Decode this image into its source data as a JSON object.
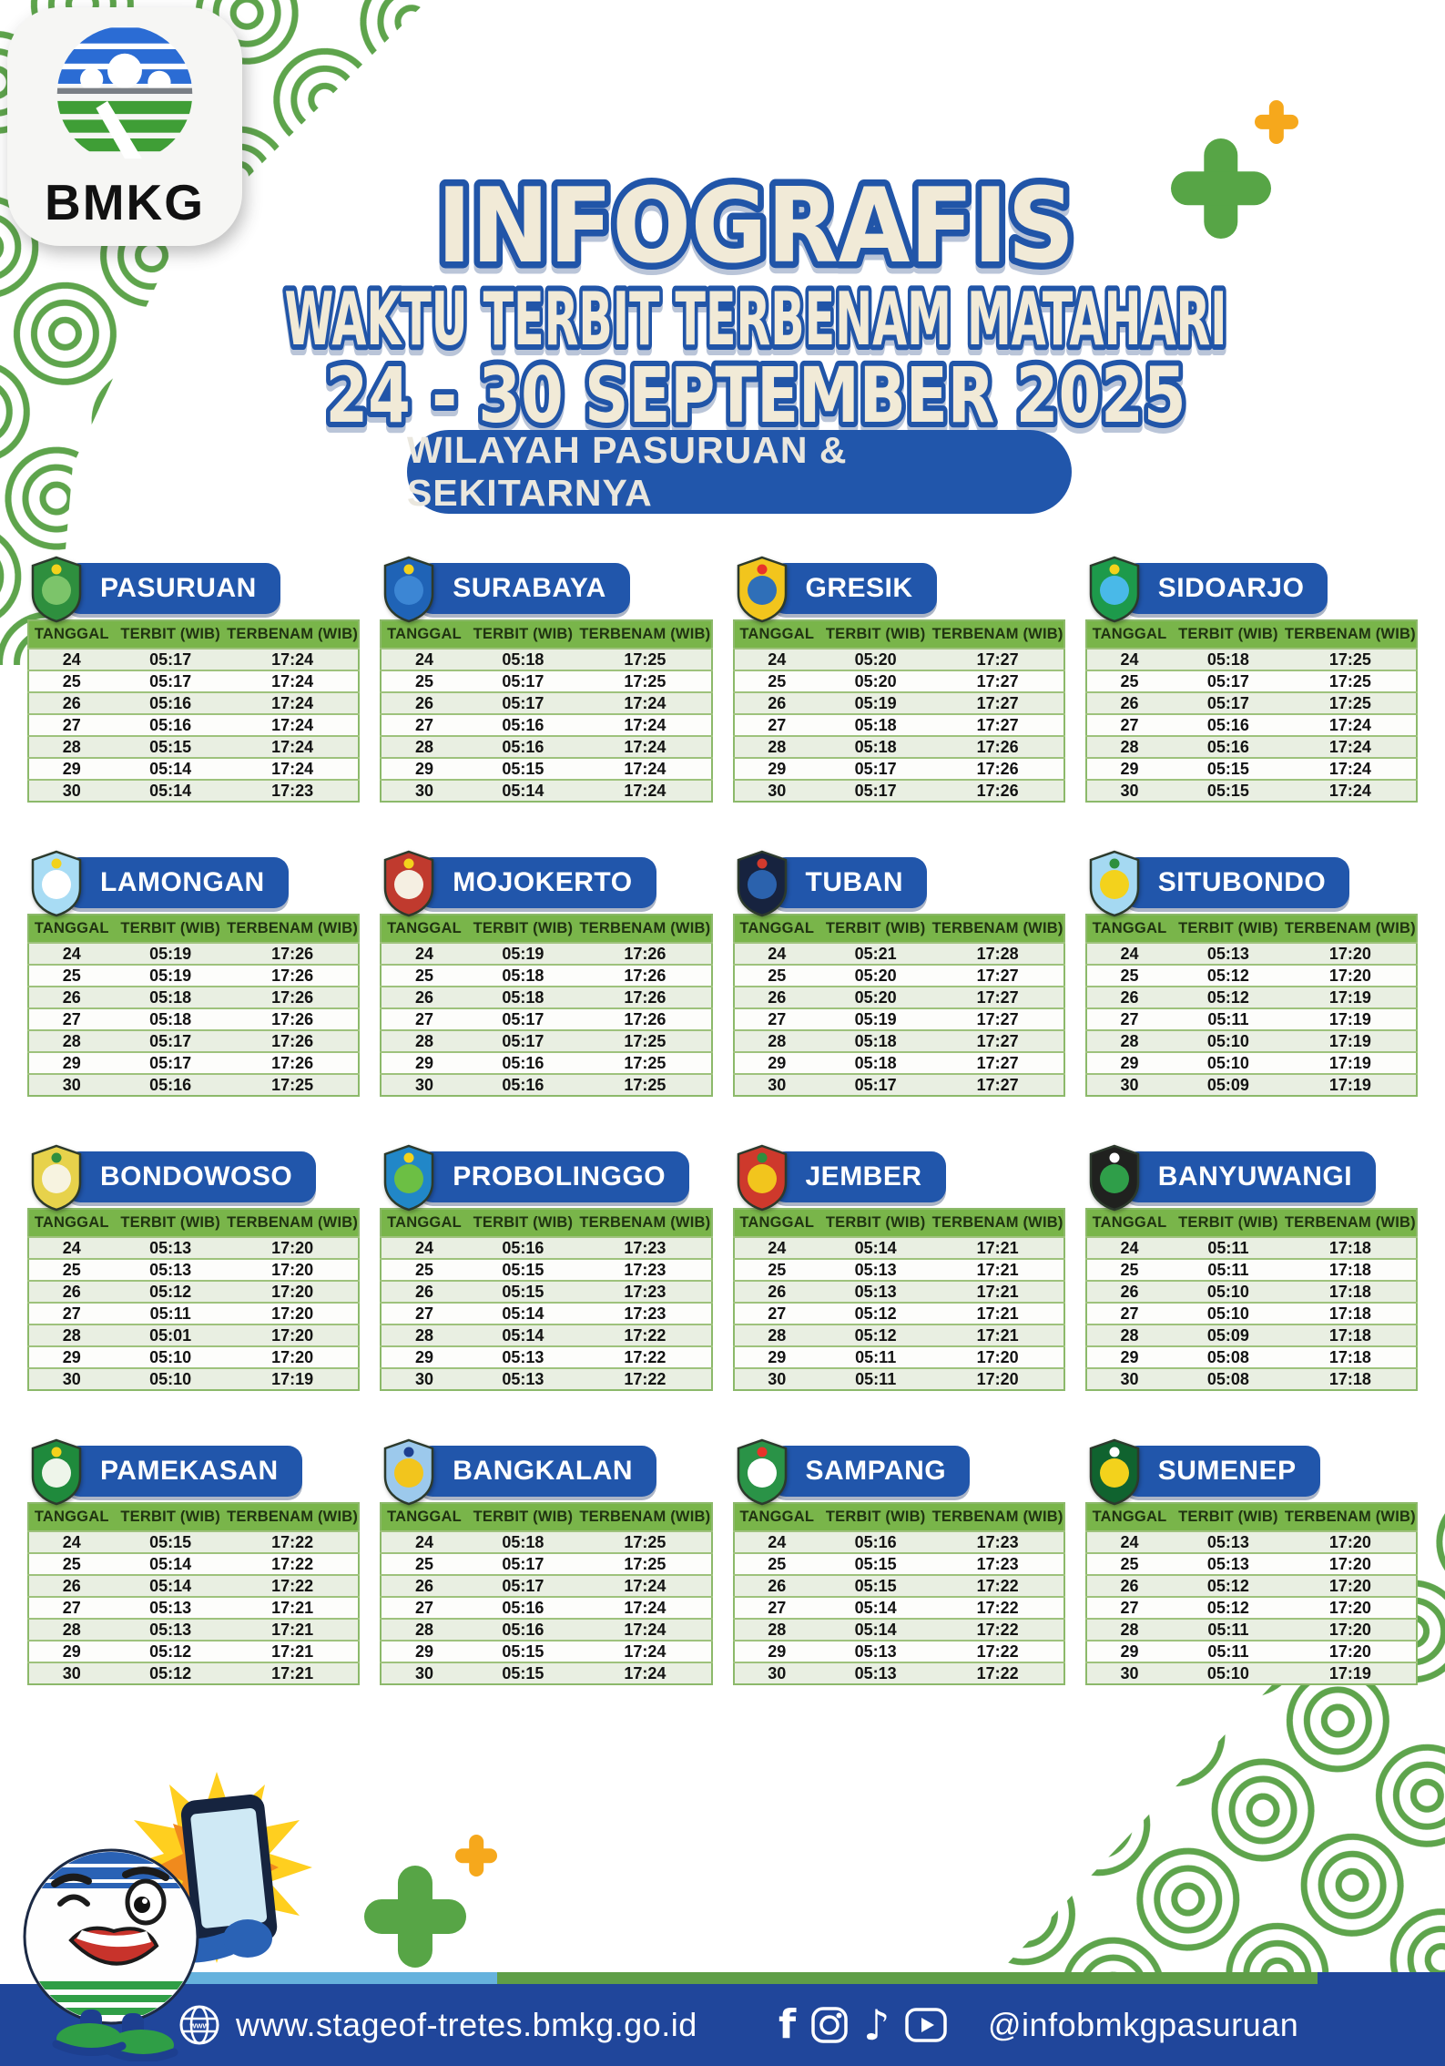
{
  "header": {
    "logo_text": "BMKG",
    "title_line1": "INFOGRAFIS",
    "title_line2": "WAKTU TERBIT TERBENAM MATAHARI",
    "title_line3": "24 - 30 SEPTEMBER 2025",
    "region_pill": "WILAYAH PASURUAN & SEKITARNYA"
  },
  "table": {
    "columns": [
      "TANGGAL",
      "TERBIT (WIB)",
      "TERBENAM (WIB)"
    ]
  },
  "cities": [
    {
      "name": "PASURUAN",
      "emblem": {
        "outer": "#2e8f3e",
        "inner": "#7cc46a",
        "accent": "#f3d21c"
      },
      "rows": [
        [
          "24",
          "05:17",
          "17:24"
        ],
        [
          "25",
          "05:17",
          "17:24"
        ],
        [
          "26",
          "05:16",
          "17:24"
        ],
        [
          "27",
          "05:16",
          "17:24"
        ],
        [
          "28",
          "05:15",
          "17:24"
        ],
        [
          "29",
          "05:14",
          "17:24"
        ],
        [
          "30",
          "05:14",
          "17:23"
        ]
      ]
    },
    {
      "name": "SURABAYA",
      "emblem": {
        "outer": "#1f63b6",
        "inner": "#3c86d4",
        "accent": "#f3d21c"
      },
      "rows": [
        [
          "24",
          "05:18",
          "17:25"
        ],
        [
          "25",
          "05:17",
          "17:25"
        ],
        [
          "26",
          "05:17",
          "17:24"
        ],
        [
          "27",
          "05:16",
          "17:24"
        ],
        [
          "28",
          "05:16",
          "17:24"
        ],
        [
          "29",
          "05:15",
          "17:24"
        ],
        [
          "30",
          "05:14",
          "17:24"
        ]
      ]
    },
    {
      "name": "GRESIK",
      "emblem": {
        "outer": "#f2c51d",
        "inner": "#2f6fb8",
        "accent": "#e8332a"
      },
      "rows": [
        [
          "24",
          "05:20",
          "17:27"
        ],
        [
          "25",
          "05:20",
          "17:27"
        ],
        [
          "26",
          "05:19",
          "17:27"
        ],
        [
          "27",
          "05:18",
          "17:27"
        ],
        [
          "28",
          "05:18",
          "17:26"
        ],
        [
          "29",
          "05:17",
          "17:26"
        ],
        [
          "30",
          "05:17",
          "17:26"
        ]
      ]
    },
    {
      "name": "SIDOARJO",
      "emblem": {
        "outer": "#1d9a4b",
        "inner": "#49b9e8",
        "accent": "#f3d21c"
      },
      "rows": [
        [
          "24",
          "05:18",
          "17:25"
        ],
        [
          "25",
          "05:17",
          "17:25"
        ],
        [
          "26",
          "05:17",
          "17:25"
        ],
        [
          "27",
          "05:16",
          "17:24"
        ],
        [
          "28",
          "05:16",
          "17:24"
        ],
        [
          "29",
          "05:15",
          "17:24"
        ],
        [
          "30",
          "05:15",
          "17:24"
        ]
      ]
    },
    {
      "name": "LAMONGAN",
      "emblem": {
        "outer": "#a8dcf4",
        "inner": "#ffffff",
        "accent": "#f3d21c"
      },
      "rows": [
        [
          "24",
          "05:19",
          "17:26"
        ],
        [
          "25",
          "05:19",
          "17:26"
        ],
        [
          "26",
          "05:18",
          "17:26"
        ],
        [
          "27",
          "05:18",
          "17:26"
        ],
        [
          "28",
          "05:17",
          "17:26"
        ],
        [
          "29",
          "05:17",
          "17:26"
        ],
        [
          "30",
          "05:16",
          "17:25"
        ]
      ]
    },
    {
      "name": "MOJOKERTO",
      "emblem": {
        "outer": "#c03a2e",
        "inner": "#f5efe2",
        "accent": "#f3d21c"
      },
      "rows": [
        [
          "24",
          "05:19",
          "17:26"
        ],
        [
          "25",
          "05:18",
          "17:26"
        ],
        [
          "26",
          "05:18",
          "17:26"
        ],
        [
          "27",
          "05:17",
          "17:26"
        ],
        [
          "28",
          "05:17",
          "17:25"
        ],
        [
          "29",
          "05:16",
          "17:25"
        ],
        [
          "30",
          "05:16",
          "17:25"
        ]
      ]
    },
    {
      "name": "TUBAN",
      "emblem": {
        "outer": "#17233f",
        "inner": "#2b62ad",
        "accent": "#d23a2d"
      },
      "rows": [
        [
          "24",
          "05:21",
          "17:28"
        ],
        [
          "25",
          "05:20",
          "17:27"
        ],
        [
          "26",
          "05:20",
          "17:27"
        ],
        [
          "27",
          "05:19",
          "17:27"
        ],
        [
          "28",
          "05:18",
          "17:27"
        ],
        [
          "29",
          "05:18",
          "17:27"
        ],
        [
          "30",
          "05:17",
          "17:27"
        ]
      ]
    },
    {
      "name": "SITUBONDO",
      "emblem": {
        "outer": "#a5d9f2",
        "inner": "#f3d21c",
        "accent": "#2e8f3e"
      },
      "rows": [
        [
          "24",
          "05:13",
          "17:20"
        ],
        [
          "25",
          "05:12",
          "17:20"
        ],
        [
          "26",
          "05:12",
          "17:19"
        ],
        [
          "27",
          "05:11",
          "17:19"
        ],
        [
          "28",
          "05:10",
          "17:19"
        ],
        [
          "29",
          "05:10",
          "17:19"
        ],
        [
          "30",
          "05:09",
          "17:19"
        ]
      ]
    },
    {
      "name": "BONDOWOSO",
      "emblem": {
        "outer": "#e7d24b",
        "inner": "#f7f3e0",
        "accent": "#2e8f3e"
      },
      "rows": [
        [
          "24",
          "05:13",
          "17:20"
        ],
        [
          "25",
          "05:13",
          "17:20"
        ],
        [
          "26",
          "05:12",
          "17:20"
        ],
        [
          "27",
          "05:11",
          "17:20"
        ],
        [
          "28",
          "05:01",
          "17:20"
        ],
        [
          "29",
          "05:10",
          "17:20"
        ],
        [
          "30",
          "05:10",
          "17:19"
        ]
      ]
    },
    {
      "name": "PROBOLINGGO",
      "emblem": {
        "outer": "#2187c8",
        "inner": "#6cbf44",
        "accent": "#f3d21c"
      },
      "rows": [
        [
          "24",
          "05:16",
          "17:23"
        ],
        [
          "25",
          "05:15",
          "17:23"
        ],
        [
          "26",
          "05:15",
          "17:23"
        ],
        [
          "27",
          "05:14",
          "17:23"
        ],
        [
          "28",
          "05:14",
          "17:22"
        ],
        [
          "29",
          "05:13",
          "17:22"
        ],
        [
          "30",
          "05:13",
          "17:22"
        ]
      ]
    },
    {
      "name": "JEMBER",
      "emblem": {
        "outer": "#ce392c",
        "inner": "#f2c51d",
        "accent": "#2e8f3e"
      },
      "rows": [
        [
          "24",
          "05:14",
          "17:21"
        ],
        [
          "25",
          "05:13",
          "17:21"
        ],
        [
          "26",
          "05:13",
          "17:21"
        ],
        [
          "27",
          "05:12",
          "17:21"
        ],
        [
          "28",
          "05:12",
          "17:21"
        ],
        [
          "29",
          "05:11",
          "17:20"
        ],
        [
          "30",
          "05:11",
          "17:20"
        ]
      ]
    },
    {
      "name": "BANYUWANGI",
      "emblem": {
        "outer": "#20211f",
        "inner": "#2f9e49",
        "accent": "#ffffff"
      },
      "rows": [
        [
          "24",
          "05:11",
          "17:18"
        ],
        [
          "25",
          "05:11",
          "17:18"
        ],
        [
          "26",
          "05:10",
          "17:18"
        ],
        [
          "27",
          "05:10",
          "17:18"
        ],
        [
          "28",
          "05:09",
          "17:18"
        ],
        [
          "29",
          "05:08",
          "17:18"
        ],
        [
          "30",
          "05:08",
          "17:18"
        ]
      ]
    },
    {
      "name": "PAMEKASAN",
      "emblem": {
        "outer": "#1f8a3c",
        "inner": "#eef5ea",
        "accent": "#f3d21c"
      },
      "rows": [
        [
          "24",
          "05:15",
          "17:22"
        ],
        [
          "25",
          "05:14",
          "17:22"
        ],
        [
          "26",
          "05:14",
          "17:22"
        ],
        [
          "27",
          "05:13",
          "17:21"
        ],
        [
          "28",
          "05:13",
          "17:21"
        ],
        [
          "29",
          "05:12",
          "17:21"
        ],
        [
          "30",
          "05:12",
          "17:21"
        ]
      ]
    },
    {
      "name": "BANGKALAN",
      "emblem": {
        "outer": "#9cc9ec",
        "inner": "#f2c51d",
        "accent": "#1d3f8f"
      },
      "rows": [
        [
          "24",
          "05:18",
          "17:25"
        ],
        [
          "25",
          "05:17",
          "17:25"
        ],
        [
          "26",
          "05:17",
          "17:24"
        ],
        [
          "27",
          "05:16",
          "17:24"
        ],
        [
          "28",
          "05:16",
          "17:24"
        ],
        [
          "29",
          "05:15",
          "17:24"
        ],
        [
          "30",
          "05:15",
          "17:24"
        ]
      ]
    },
    {
      "name": "SAMPANG",
      "emblem": {
        "outer": "#2a9347",
        "inner": "#ffffff",
        "accent": "#e8332a"
      },
      "rows": [
        [
          "24",
          "05:16",
          "17:23"
        ],
        [
          "25",
          "05:15",
          "17:23"
        ],
        [
          "26",
          "05:15",
          "17:22"
        ],
        [
          "27",
          "05:14",
          "17:22"
        ],
        [
          "28",
          "05:14",
          "17:22"
        ],
        [
          "29",
          "05:13",
          "17:22"
        ],
        [
          "30",
          "05:13",
          "17:22"
        ]
      ]
    },
    {
      "name": "SUMENEP",
      "emblem": {
        "outer": "#10632f",
        "inner": "#f3d21c",
        "accent": "#ffffff"
      },
      "rows": [
        [
          "24",
          "05:13",
          "17:20"
        ],
        [
          "25",
          "05:13",
          "17:20"
        ],
        [
          "26",
          "05:12",
          "17:20"
        ],
        [
          "27",
          "05:12",
          "17:20"
        ],
        [
          "28",
          "05:11",
          "17:20"
        ],
        [
          "29",
          "05:11",
          "17:20"
        ],
        [
          "30",
          "05:10",
          "17:19"
        ]
      ]
    }
  ],
  "footer": {
    "website": "www.stageof-tretes.bmkg.go.id",
    "social_handle": "@infobmkgpasuruan",
    "social_icons": [
      "facebook-icon",
      "instagram-icon",
      "tiktok-icon",
      "youtube-icon"
    ]
  },
  "colors": {
    "badge_blue": "#2156ab",
    "header_green": "#79b54a",
    "row_alt_green": "#e9efe2",
    "title_blue": "#2155a8",
    "title_cream": "#f1ead7",
    "footer_blue": "#20469b",
    "strip_lightblue": "#66b2dd",
    "strip_green": "#5f9e47",
    "plus_green": "#57a546",
    "plus_yellow": "#f6a81c",
    "pattern_green": "#5ea44c"
  }
}
